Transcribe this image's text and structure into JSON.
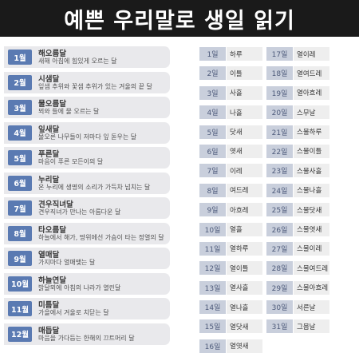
{
  "title": "예쁜 우리말로 생일 읽기",
  "months": [
    {
      "num": "1월",
      "name": "해오름달",
      "desc": "새해 아침에 힘있게 오르는 달"
    },
    {
      "num": "2월",
      "name": "시샘달",
      "desc": "잎샘 추위와 꽃샘 추위가 있는 겨울의 끝 달"
    },
    {
      "num": "3월",
      "name": "물오름달",
      "desc": "뫼와 들에 물 오르는 달"
    },
    {
      "num": "4월",
      "name": "잎새달",
      "desc": "물오른 나무들이 저마다 잎 돋우는 달"
    },
    {
      "num": "5월",
      "name": "푸른달",
      "desc": "마음이 푸른 모든이의 달"
    },
    {
      "num": "6월",
      "name": "누리달",
      "desc": "온 누리에 생명의 소리가 가득차 넘치는 달"
    },
    {
      "num": "7월",
      "name": "견우직녀달",
      "desc": "견우직녀가 만나는 아름다운 달"
    },
    {
      "num": "8월",
      "name": "타오름달",
      "desc": "하늘에서 해가, 땅위에선 가슴이 타는 정열의 달"
    },
    {
      "num": "9월",
      "name": "열매달",
      "desc": "가지마다 열매맺는 달"
    },
    {
      "num": "10월",
      "name": "하늘연달",
      "desc": "밝달뫼에 아침의 나라가 열린달"
    },
    {
      "num": "11월",
      "name": "미틈달",
      "desc": "가을에서 겨울로 치닫는 달"
    },
    {
      "num": "12월",
      "name": "매듭달",
      "desc": "마음을 가다듬는 한해의 끄트머리 달"
    }
  ],
  "days_left": [
    {
      "num": "1일",
      "name": "하루"
    },
    {
      "num": "2일",
      "name": "이틀"
    },
    {
      "num": "3일",
      "name": "사흘"
    },
    {
      "num": "4일",
      "name": "나흘"
    },
    {
      "num": "5일",
      "name": "닷새"
    },
    {
      "num": "6일",
      "name": "엿새"
    },
    {
      "num": "7일",
      "name": "이레"
    },
    {
      "num": "8일",
      "name": "여드레"
    },
    {
      "num": "9일",
      "name": "아흐레"
    },
    {
      "num": "10일",
      "name": "열흘"
    },
    {
      "num": "11일",
      "name": "열하루"
    },
    {
      "num": "12일",
      "name": "열이틀"
    },
    {
      "num": "13일",
      "name": "열사흘"
    },
    {
      "num": "14일",
      "name": "열나흘"
    },
    {
      "num": "15일",
      "name": "열닷새"
    },
    {
      "num": "16일",
      "name": "열엿새"
    }
  ],
  "days_right": [
    {
      "num": "17일",
      "name": "열이레"
    },
    {
      "num": "18일",
      "name": "열여드레"
    },
    {
      "num": "19일",
      "name": "열아흐레"
    },
    {
      "num": "20일",
      "name": "스무날"
    },
    {
      "num": "21일",
      "name": "스물하루"
    },
    {
      "num": "22일",
      "name": "스물이틀"
    },
    {
      "num": "23일",
      "name": "스물사흘"
    },
    {
      "num": "24일",
      "name": "스물나흘"
    },
    {
      "num": "25일",
      "name": "스물닷새"
    },
    {
      "num": "26일",
      "name": "스물엿새"
    },
    {
      "num": "27일",
      "name": "스물이레"
    },
    {
      "num": "28일",
      "name": "스물여드레"
    },
    {
      "num": "29일",
      "name": "스물아흐레"
    },
    {
      "num": "30일",
      "name": "서른날"
    },
    {
      "num": "31일",
      "name": "그믐날"
    }
  ]
}
